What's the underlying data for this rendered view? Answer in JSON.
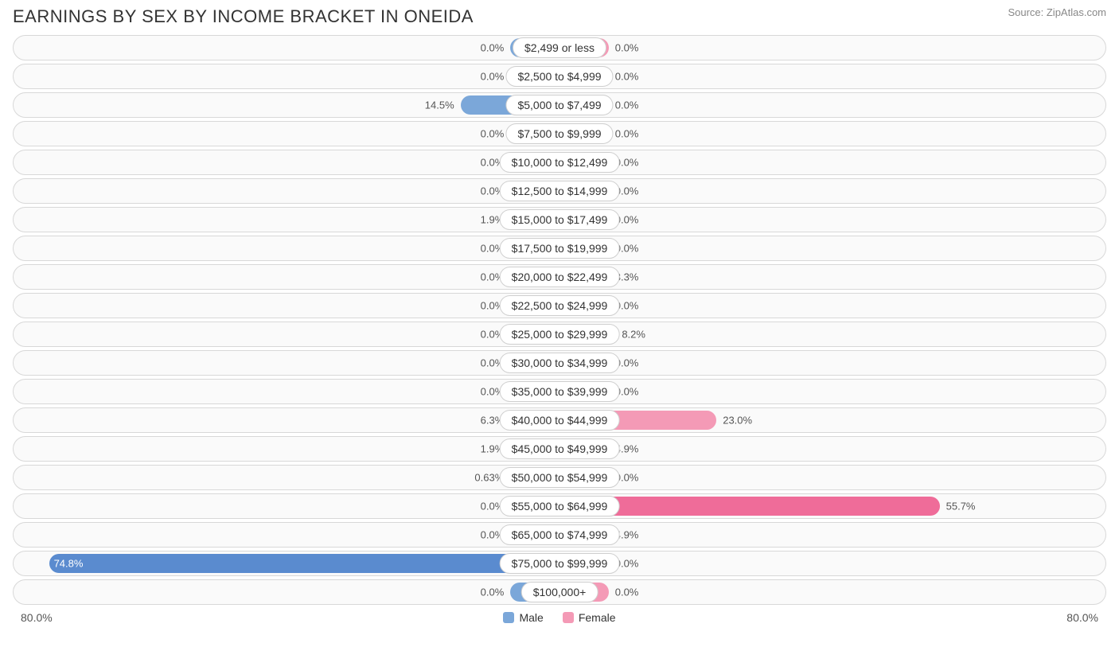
{
  "title": "EARNINGS BY SEX BY INCOME BRACKET IN ONEIDA",
  "source": "Source: ZipAtlas.com",
  "chart": {
    "type": "diverging-bar",
    "axis_max": 80.0,
    "axis_label_left": "80.0%",
    "axis_label_right": "80.0%",
    "stub_male_width_pct": 9.0,
    "stub_female_width_pct": 9.0,
    "colors": {
      "male_bar": "#7ba7d9",
      "male_bar_strong": "#5a8bcf",
      "female_bar": "#f49ab6",
      "female_bar_strong": "#ef6c99",
      "row_border": "#d8d8d8",
      "row_bg": "#fafafa",
      "text": "#333333",
      "text_muted": "#555555",
      "source_text": "#888888",
      "label_border": "#cfcfcf",
      "label_bg": "#ffffff"
    },
    "legend": [
      {
        "label": "Male",
        "color": "#7ba7d9"
      },
      {
        "label": "Female",
        "color": "#f49ab6"
      }
    ],
    "rows": [
      {
        "label": "$2,499 or less",
        "male": 0.0,
        "female": 0.0,
        "male_label": "0.0%",
        "female_label": "0.0%"
      },
      {
        "label": "$2,500 to $4,999",
        "male": 0.0,
        "female": 0.0,
        "male_label": "0.0%",
        "female_label": "0.0%"
      },
      {
        "label": "$5,000 to $7,499",
        "male": 14.5,
        "female": 0.0,
        "male_label": "14.5%",
        "female_label": "0.0%"
      },
      {
        "label": "$7,500 to $9,999",
        "male": 0.0,
        "female": 0.0,
        "male_label": "0.0%",
        "female_label": "0.0%"
      },
      {
        "label": "$10,000 to $12,499",
        "male": 0.0,
        "female": 0.0,
        "male_label": "0.0%",
        "female_label": "0.0%"
      },
      {
        "label": "$12,500 to $14,999",
        "male": 0.0,
        "female": 0.0,
        "male_label": "0.0%",
        "female_label": "0.0%"
      },
      {
        "label": "$15,000 to $17,499",
        "male": 1.9,
        "female": 0.0,
        "male_label": "1.9%",
        "female_label": "0.0%"
      },
      {
        "label": "$17,500 to $19,999",
        "male": 0.0,
        "female": 0.0,
        "male_label": "0.0%",
        "female_label": "0.0%"
      },
      {
        "label": "$20,000 to $22,499",
        "male": 0.0,
        "female": 3.3,
        "male_label": "0.0%",
        "female_label": "3.3%"
      },
      {
        "label": "$22,500 to $24,999",
        "male": 0.0,
        "female": 0.0,
        "male_label": "0.0%",
        "female_label": "0.0%"
      },
      {
        "label": "$25,000 to $29,999",
        "male": 0.0,
        "female": 8.2,
        "male_label": "0.0%",
        "female_label": "8.2%"
      },
      {
        "label": "$30,000 to $34,999",
        "male": 0.0,
        "female": 0.0,
        "male_label": "0.0%",
        "female_label": "0.0%"
      },
      {
        "label": "$35,000 to $39,999",
        "male": 0.0,
        "female": 0.0,
        "male_label": "0.0%",
        "female_label": "0.0%"
      },
      {
        "label": "$40,000 to $44,999",
        "male": 6.3,
        "female": 23.0,
        "male_label": "6.3%",
        "female_label": "23.0%"
      },
      {
        "label": "$45,000 to $49,999",
        "male": 1.9,
        "female": 4.9,
        "male_label": "1.9%",
        "female_label": "4.9%"
      },
      {
        "label": "$50,000 to $54,999",
        "male": 0.63,
        "female": 0.0,
        "male_label": "0.63%",
        "female_label": "0.0%"
      },
      {
        "label": "$55,000 to $64,999",
        "male": 0.0,
        "female": 55.7,
        "male_label": "0.0%",
        "female_label": "55.7%"
      },
      {
        "label": "$65,000 to $74,999",
        "male": 0.0,
        "female": 4.9,
        "male_label": "0.0%",
        "female_label": "4.9%"
      },
      {
        "label": "$75,000 to $99,999",
        "male": 74.8,
        "female": 0.0,
        "male_label": "74.8%",
        "female_label": "0.0%"
      },
      {
        "label": "$100,000+",
        "male": 0.0,
        "female": 0.0,
        "male_label": "0.0%",
        "female_label": "0.0%"
      }
    ]
  }
}
